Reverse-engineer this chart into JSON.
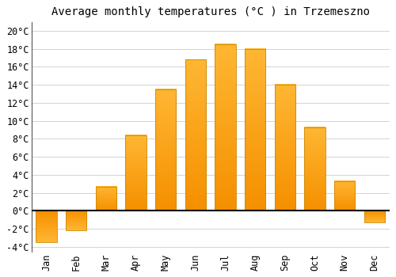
{
  "title": "Average monthly temperatures (°C ) in Trzemeszno",
  "months": [
    "Jan",
    "Feb",
    "Mar",
    "Apr",
    "May",
    "Jun",
    "Jul",
    "Aug",
    "Sep",
    "Oct",
    "Nov",
    "Dec"
  ],
  "values": [
    -3.5,
    -2.2,
    2.7,
    8.4,
    13.5,
    16.8,
    18.5,
    18.0,
    14.0,
    9.3,
    3.3,
    -1.3
  ],
  "bar_color_top": "#FFB733",
  "bar_color_bottom": "#F59000",
  "bar_edge_color": "#CC8800",
  "background_color": "#ffffff",
  "plot_bg_color": "#ffffff",
  "grid_color": "#cccccc",
  "ylim": [
    -4.5,
    21
  ],
  "yticks": [
    -4,
    -2,
    0,
    2,
    4,
    6,
    8,
    10,
    12,
    14,
    16,
    18,
    20
  ],
  "title_fontsize": 10,
  "tick_fontsize": 8.5,
  "zero_line_color": "#000000",
  "spine_color": "#555555"
}
